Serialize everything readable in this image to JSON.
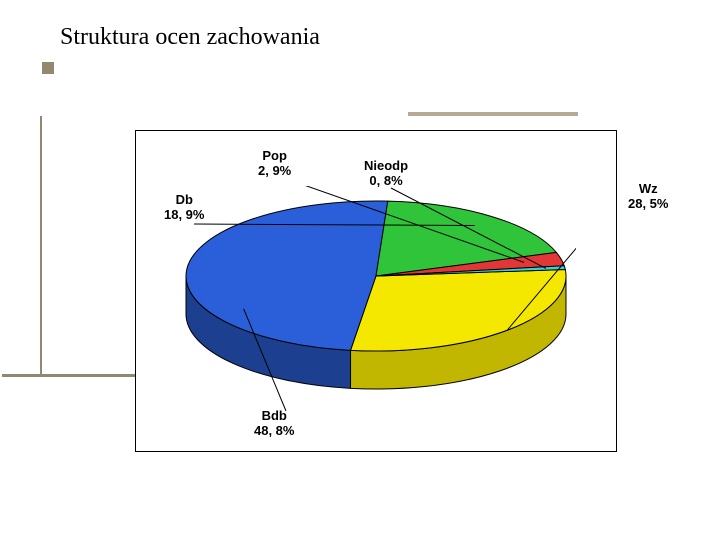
{
  "title": "Struktura ocen zachowania",
  "chart": {
    "type": "pie-3d",
    "background_color": "#ffffff",
    "border_color": "#000000",
    "slices": [
      {
        "key": "wz",
        "label": "Wz",
        "value": 28.5,
        "pct_text": "28, 5%",
        "fill": "#f5e800",
        "side": "#c1b700"
      },
      {
        "key": "bdb",
        "label": "Bdb",
        "value": 48.8,
        "pct_text": "48, 8%",
        "fill": "#2b5fd9",
        "side": "#1c3f90"
      },
      {
        "key": "db",
        "label": "Db",
        "value": 18.9,
        "pct_text": "18, 9%",
        "fill": "#2fc43a",
        "side": "#1f8326"
      },
      {
        "key": "pop",
        "label": "Pop",
        "value": 2.9,
        "pct_text": "2, 9%",
        "fill": "#e33636",
        "side": "#9a2424"
      },
      {
        "key": "nieodp",
        "label": "Nieodp",
        "value": 0.8,
        "pct_text": "0, 8%",
        "fill": "#34d2d8",
        "side": "#228c90"
      }
    ],
    "label_fontsize": 13,
    "label_fontweight": "bold",
    "label_color": "#000000",
    "outline_color": "#000000"
  },
  "frame": {
    "accent_color": "#92876f",
    "light_accent": "#b8a896"
  }
}
